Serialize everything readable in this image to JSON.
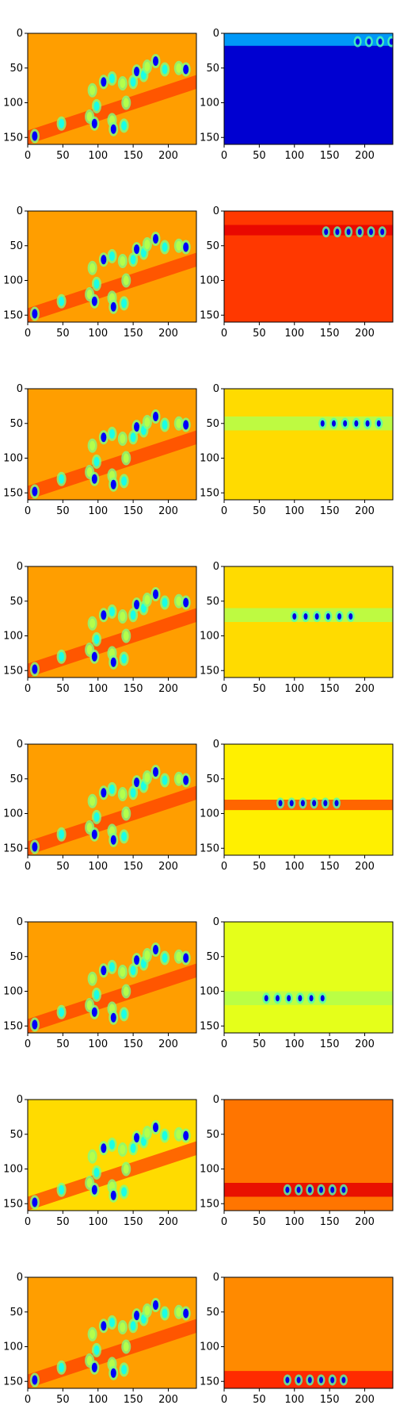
{
  "chart_data": {
    "type": "heatmap",
    "layout": {
      "rows": 8,
      "cols": 2
    },
    "colormap": "jet",
    "x_ticks": [
      0,
      50,
      100,
      150,
      200
    ],
    "y_ticks": [
      0,
      50,
      100,
      150
    ],
    "xlim": [
      0,
      240
    ],
    "ylim": [
      160,
      0
    ],
    "panels": [
      {
        "row": 0,
        "col": 0,
        "background": 0.72,
        "blobs": "full-scene"
      },
      {
        "row": 0,
        "col": 1,
        "background": 0.08,
        "band_y": [
          0,
          18
        ],
        "band_value": 0.3,
        "hotspot": [
          230,
          12
        ]
      },
      {
        "row": 1,
        "col": 0,
        "background": 0.72,
        "blobs": "full-scene"
      },
      {
        "row": 1,
        "col": 1,
        "background": 0.82,
        "band_y": [
          20,
          35
        ],
        "band_value": 0.9,
        "hotspot": [
          185,
          30
        ]
      },
      {
        "row": 2,
        "col": 0,
        "background": 0.72,
        "blobs": "full-scene"
      },
      {
        "row": 2,
        "col": 1,
        "background": 0.66,
        "band_y": [
          40,
          60
        ],
        "band_value": 0.55,
        "hotspot": [
          180,
          50
        ]
      },
      {
        "row": 3,
        "col": 0,
        "background": 0.72,
        "blobs": "full-scene"
      },
      {
        "row": 3,
        "col": 1,
        "background": 0.66,
        "band_y": [
          60,
          80
        ],
        "band_value": 0.55,
        "hotspot": [
          140,
          72
        ]
      },
      {
        "row": 4,
        "col": 0,
        "background": 0.72,
        "blobs": "full-scene"
      },
      {
        "row": 4,
        "col": 1,
        "background": 0.64,
        "band_y": [
          80,
          95
        ],
        "band_value": 0.8,
        "hotspot": [
          120,
          85
        ]
      },
      {
        "row": 5,
        "col": 0,
        "background": 0.72,
        "blobs": "full-scene"
      },
      {
        "row": 5,
        "col": 1,
        "background": 0.6,
        "band_y": [
          100,
          120
        ],
        "band_value": 0.55,
        "hotspot": [
          100,
          110
        ]
      },
      {
        "row": 6,
        "col": 0,
        "background": 0.66,
        "blobs": "full-scene"
      },
      {
        "row": 6,
        "col": 1,
        "background": 0.76,
        "band_y": [
          120,
          140
        ],
        "band_value": 0.9,
        "hotspot": [
          130,
          130
        ]
      },
      {
        "row": 7,
        "col": 0,
        "background": 0.72,
        "blobs": "full-scene"
      },
      {
        "row": 7,
        "col": 1,
        "background": 0.74,
        "band_y": [
          135,
          160
        ],
        "band_value": 0.85,
        "hotspot": [
          130,
          148
        ]
      }
    ]
  }
}
